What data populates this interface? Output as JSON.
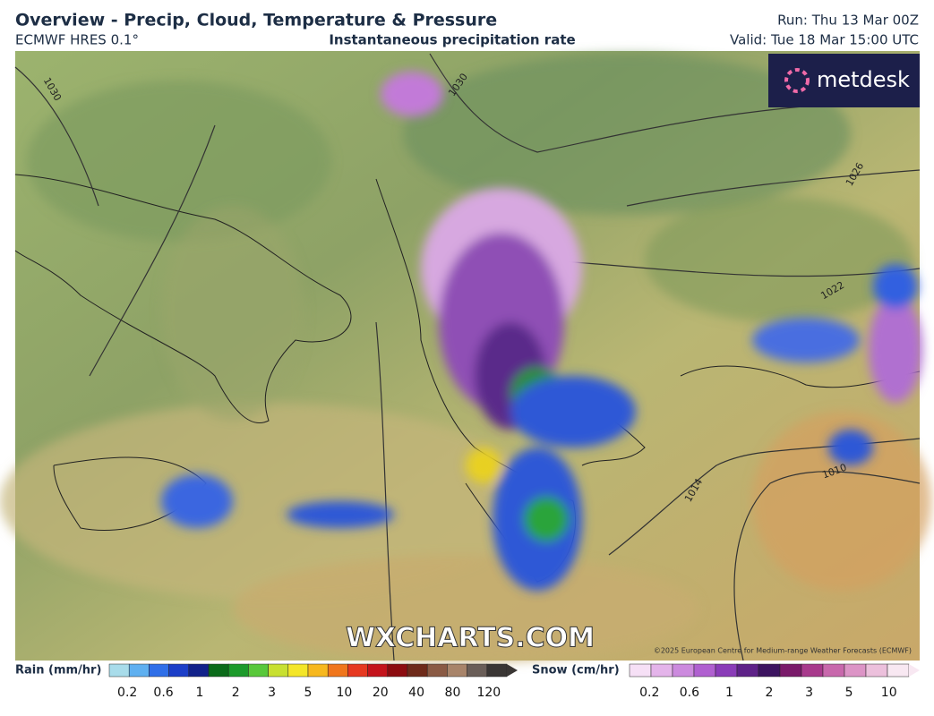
{
  "header": {
    "title": "Overview - Precip, Cloud, Temperature & Pressure",
    "model": "ECMWF HRES 0.1°",
    "field": "Instantaneous precipitation rate",
    "run": "Run: Thu 13 Mar 00Z",
    "valid": "Valid: Tue 18 Mar 15:00 UTC"
  },
  "map": {
    "logo": "metdesk",
    "watermark": "WXCHARTS.COM",
    "copyright": "©2025 European Centre for Medium-range Weather Forecasts (ECMWF)",
    "isobar_labels": [
      "1030",
      "1030",
      "1026",
      "1022",
      "1014",
      "1010"
    ]
  },
  "legend": {
    "rain": {
      "title": "Rain (mm/hr)",
      "ticks": [
        "0.2",
        "0.6",
        "1",
        "2",
        "3",
        "5",
        "10",
        "20",
        "40",
        "80",
        "120"
      ]
    },
    "snow": {
      "title": "Snow (cm/hr)",
      "ticks": [
        "0.2",
        "0.6",
        "1",
        "2",
        "3",
        "5",
        "10"
      ]
    }
  }
}
